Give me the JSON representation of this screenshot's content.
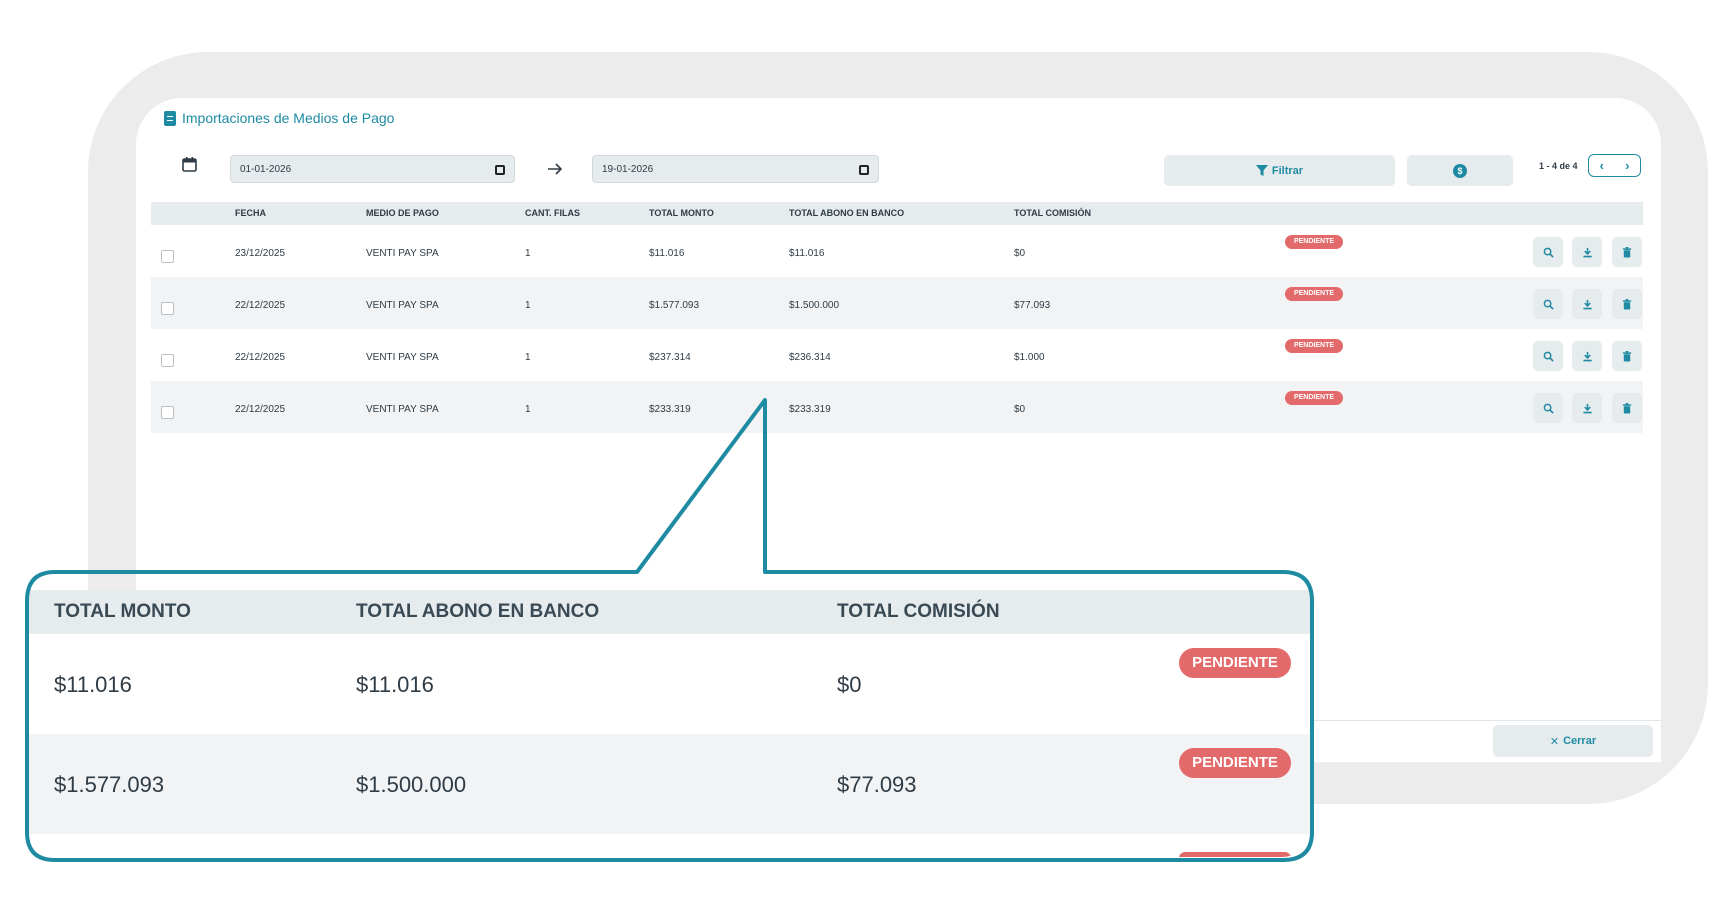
{
  "window": {
    "title": "Importaciones de Medios de Pago"
  },
  "filters": {
    "date_from": "01-01-2026",
    "date_to": "19-01-2026",
    "filter_label": "Filtrar"
  },
  "pagination": {
    "label": "1 - 4 de 4"
  },
  "table": {
    "columns": [
      "FECHA",
      "MEDIO DE PAGO",
      "CANT. FILAS",
      "TOTAL MONTO",
      "TOTAL ABONO EN BANCO",
      "TOTAL COMISIÓN"
    ],
    "rows": [
      {
        "fecha": "23/12/2025",
        "medio": "VENTI PAY SPA",
        "filas": "1",
        "monto": "$11.016",
        "abono": "$11.016",
        "comision": "$0",
        "estado": "PENDIENTE"
      },
      {
        "fecha": "22/12/2025",
        "medio": "VENTI PAY SPA",
        "filas": "1",
        "monto": "$1.577.093",
        "abono": "$1.500.000",
        "comision": "$77.093",
        "estado": "PENDIENTE"
      },
      {
        "fecha": "22/12/2025",
        "medio": "VENTI PAY SPA",
        "filas": "1",
        "monto": "$237.314",
        "abono": "$236.314",
        "comision": "$1.000",
        "estado": "PENDIENTE"
      },
      {
        "fecha": "22/12/2025",
        "medio": "VENTI PAY SPA",
        "filas": "1",
        "monto": "$233.319",
        "abono": "$233.319",
        "comision": "$0",
        "estado": "PENDIENTE"
      }
    ]
  },
  "footer": {
    "close_label": "Cerrar"
  },
  "callout": {
    "columns": [
      "TOTAL MONTO",
      "TOTAL ABONO EN BANCO",
      "TOTAL COMISIÓN"
    ],
    "rows": [
      {
        "monto": "$11.016",
        "abono": "$11.016",
        "comision": "$0",
        "estado": "PENDIENTE"
      },
      {
        "monto": "$1.577.093",
        "abono": "$1.500.000",
        "comision": "$77.093",
        "estado": "PENDIENTE"
      }
    ]
  },
  "colors": {
    "accent": "#1e8ba3",
    "badge": "#e36a6a",
    "header_bg": "#e6ebee"
  },
  "icons": [
    "document-icon",
    "calendar-icon",
    "arrow-right-icon",
    "filter-icon",
    "money-icon",
    "chevron-left-icon",
    "chevron-right-icon",
    "zoom-icon",
    "download-icon",
    "trash-icon",
    "close-icon"
  ]
}
